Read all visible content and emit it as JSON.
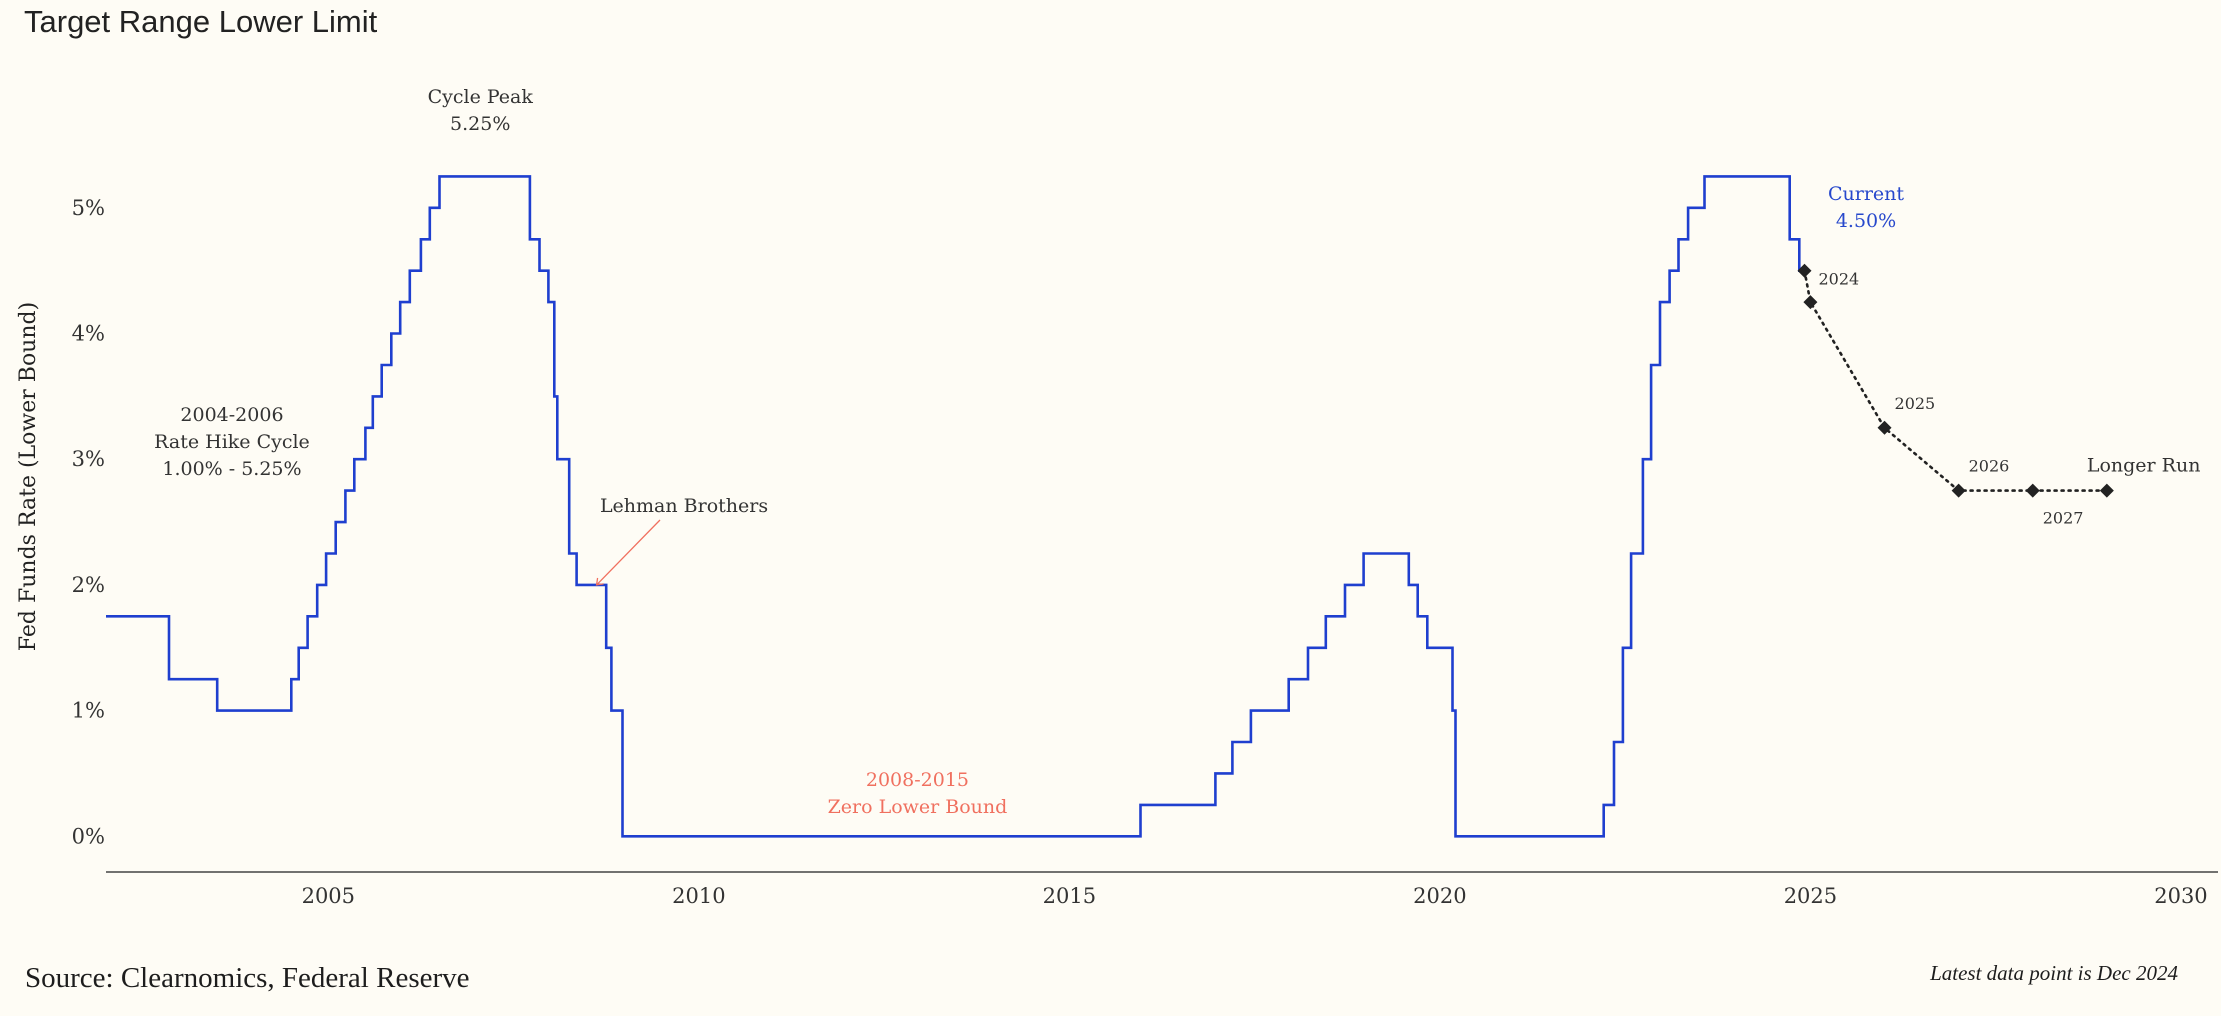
{
  "title": "Target Range Lower Limit",
  "source": "Source: Clearnomics, Federal Reserve",
  "note": "Latest data point is Dec 2024",
  "chart_data": {
    "type": "line",
    "title": "Target Range Lower Limit",
    "xlabel": "",
    "ylabel": "Fed Funds Rate (Lower Bound)",
    "xlim": [
      2002,
      2030.5
    ],
    "ylim": [
      -0.3,
      5.5
    ],
    "x_ticks": [
      2005,
      2010,
      2015,
      2020,
      2025,
      2030
    ],
    "y_ticks": [
      0,
      1,
      2,
      3,
      4,
      5
    ],
    "y_tick_labels": [
      "0%",
      "1%",
      "2%",
      "3%",
      "4%",
      "5%"
    ],
    "grid": false,
    "series": [
      {
        "kind": "step",
        "color": "#1f3fcf",
        "points": [
          [
            2002.0,
            1.75
          ],
          [
            2002.85,
            1.25
          ],
          [
            2003.5,
            1.0
          ],
          [
            2004.5,
            1.25
          ],
          [
            2004.6,
            1.5
          ],
          [
            2004.72,
            1.75
          ],
          [
            2004.85,
            2.0
          ],
          [
            2004.97,
            2.25
          ],
          [
            2005.1,
            2.5
          ],
          [
            2005.23,
            2.75
          ],
          [
            2005.35,
            3.0
          ],
          [
            2005.5,
            3.25
          ],
          [
            2005.6,
            3.5
          ],
          [
            2005.72,
            3.75
          ],
          [
            2005.85,
            4.0
          ],
          [
            2005.97,
            4.25
          ],
          [
            2006.1,
            4.5
          ],
          [
            2006.25,
            4.75
          ],
          [
            2006.37,
            5.0
          ],
          [
            2006.5,
            5.25
          ],
          [
            2007.72,
            4.75
          ],
          [
            2007.85,
            4.5
          ],
          [
            2007.97,
            4.25
          ],
          [
            2008.05,
            3.5
          ],
          [
            2008.09,
            3.0
          ],
          [
            2008.25,
            2.25
          ],
          [
            2008.35,
            2.0
          ],
          [
            2008.75,
            1.5
          ],
          [
            2008.82,
            1.0
          ],
          [
            2008.97,
            0.0
          ],
          [
            2015.96,
            0.25
          ],
          [
            2016.97,
            0.5
          ],
          [
            2017.2,
            0.75
          ],
          [
            2017.45,
            1.0
          ],
          [
            2017.96,
            1.25
          ],
          [
            2018.22,
            1.5
          ],
          [
            2018.46,
            1.75
          ],
          [
            2018.72,
            2.0
          ],
          [
            2018.97,
            2.25
          ],
          [
            2019.58,
            2.0
          ],
          [
            2019.7,
            1.75
          ],
          [
            2019.83,
            1.5
          ],
          [
            2020.17,
            1.0
          ],
          [
            2020.21,
            0.0
          ],
          [
            2022.21,
            0.25
          ],
          [
            2022.35,
            0.75
          ],
          [
            2022.47,
            1.5
          ],
          [
            2022.58,
            2.25
          ],
          [
            2022.74,
            3.0
          ],
          [
            2022.85,
            3.75
          ],
          [
            2022.97,
            4.25
          ],
          [
            2023.1,
            4.5
          ],
          [
            2023.22,
            4.75
          ],
          [
            2023.35,
            5.0
          ],
          [
            2023.57,
            5.25
          ],
          [
            2024.72,
            4.75
          ],
          [
            2024.85,
            4.5
          ],
          [
            2024.97,
            4.5
          ]
        ]
      },
      {
        "kind": "projection",
        "color": "#222222",
        "points": [
          {
            "x": 2024.92,
            "y": 4.5,
            "label": "2024"
          },
          {
            "x": 2025.0,
            "y": 4.25,
            "label": ""
          },
          {
            "x": 2026.0,
            "y": 3.25,
            "label": "2025"
          },
          {
            "x": 2027.0,
            "y": 2.75,
            "label": "2026"
          },
          {
            "x": 2028.0,
            "y": 2.75,
            "label": "2027"
          },
          {
            "x": 2029.0,
            "y": 2.75,
            "label": "Longer Run"
          }
        ]
      }
    ],
    "annotations": [
      {
        "id": "cycle-peak",
        "lines": [
          "Cycle Peak",
          "5.25%"
        ],
        "x": 2007.05,
        "y": 5.25,
        "color": "#333333"
      },
      {
        "id": "hike-cycle",
        "lines": [
          "2004-2006",
          "Rate Hike Cycle",
          "1.00% - 5.25%"
        ],
        "x": 2003.7,
        "y": 3.1,
        "color": "#333333"
      },
      {
        "id": "lehman",
        "lines": [
          "Lehman Brothers"
        ],
        "x": 2009.8,
        "y": 2.37,
        "color": "#333333",
        "arrow_to": [
          2008.62,
          2.0
        ],
        "arrow_color": "#f0705f"
      },
      {
        "id": "zlb",
        "lines": [
          "2008-2015",
          "Zero Lower Bound"
        ],
        "x": 2012.95,
        "y": 0.35,
        "color": "#f0705f"
      },
      {
        "id": "current",
        "lines": [
          "Current",
          "4.50%"
        ],
        "x": 2025.75,
        "y": 4.8,
        "color": "#2748cc"
      }
    ]
  }
}
